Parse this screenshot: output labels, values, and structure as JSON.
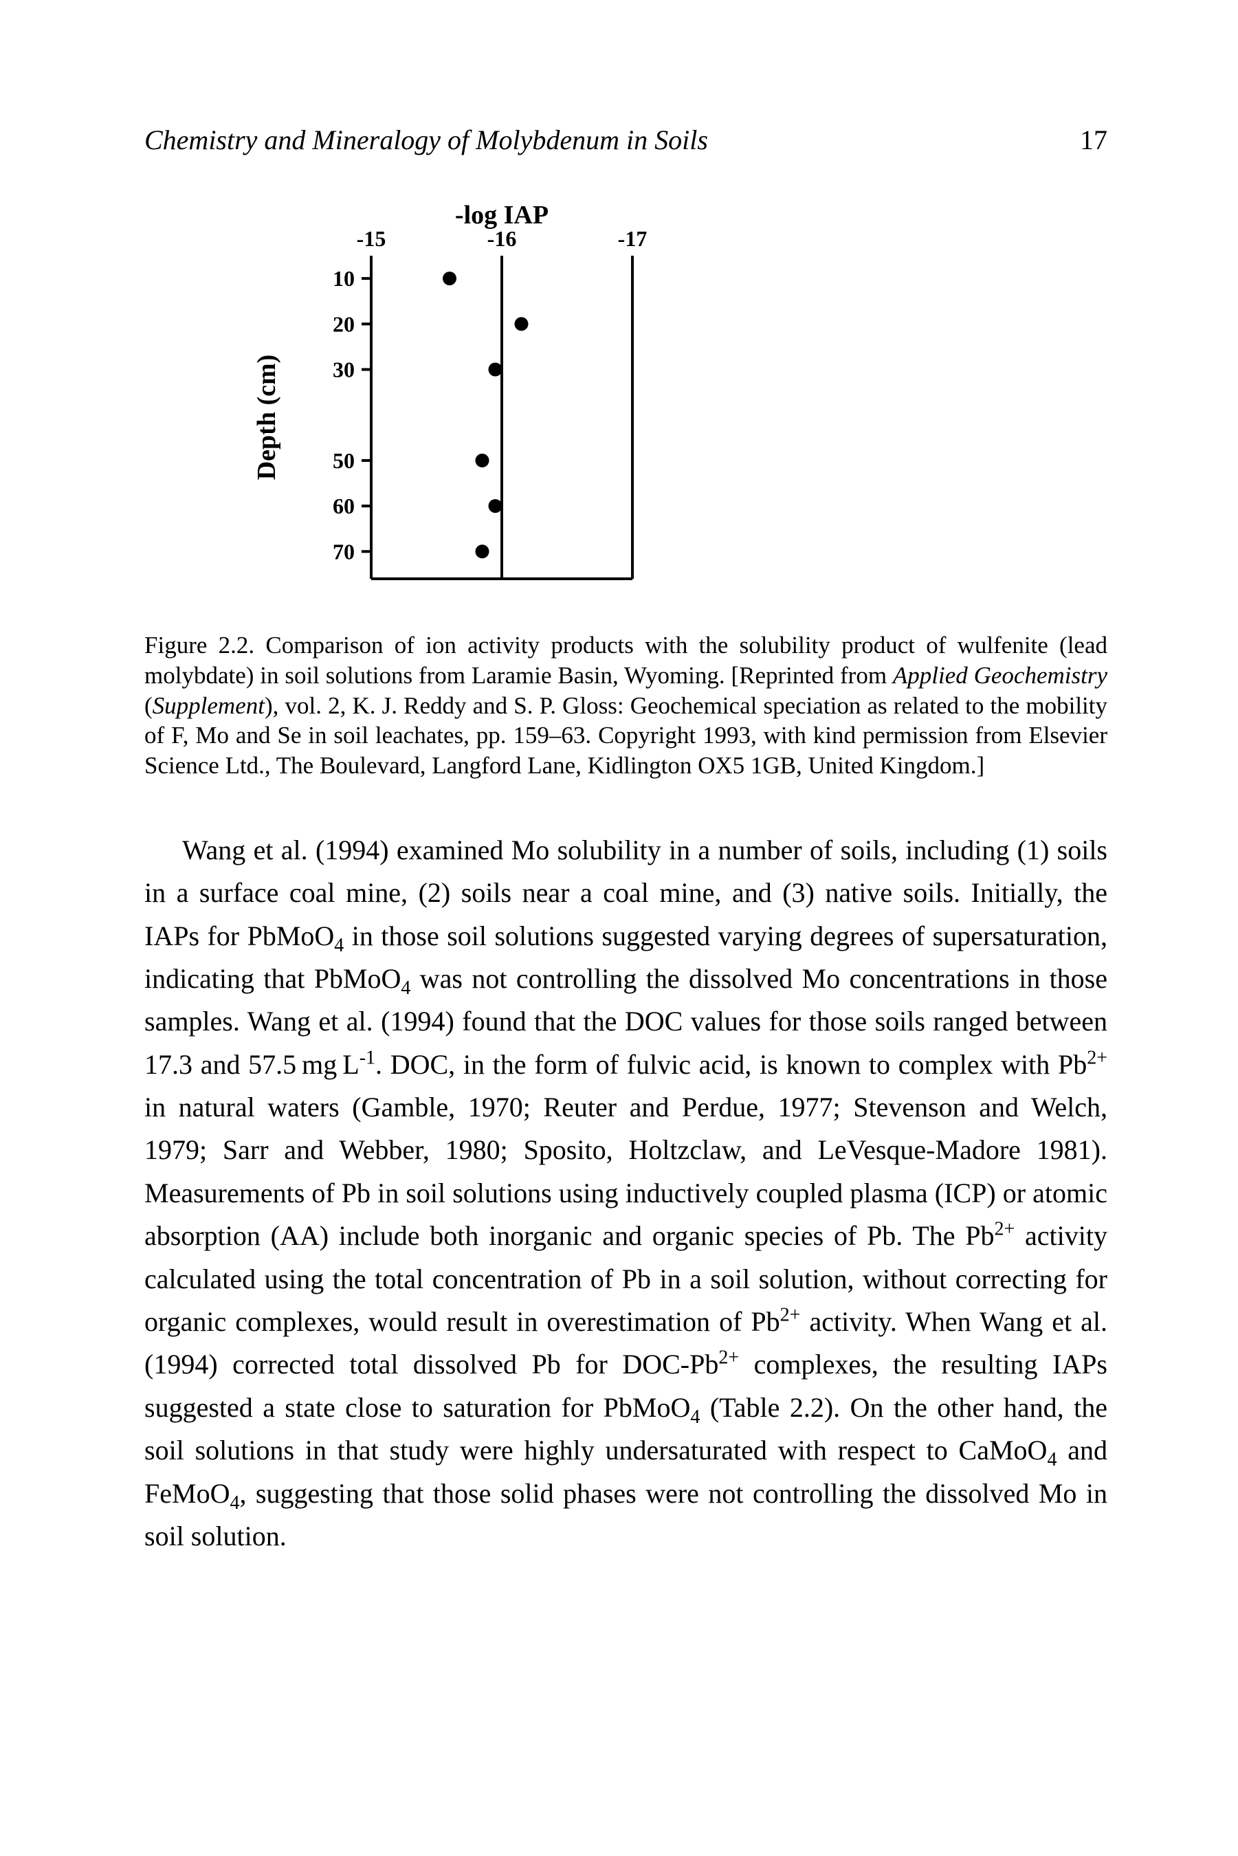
{
  "header": {
    "title": "Chemistry and Mineralogy of Molybdenum in Soils",
    "page_number": "17"
  },
  "figure": {
    "type": "scatter",
    "colors": {
      "background": "#ffffff",
      "line": "#000000",
      "point": "#000000",
      "text": "#000000"
    },
    "axis_title_x": "-log IAP",
    "axis_title_y": "Depth (cm)",
    "x_ticks": [
      "-15",
      "-16",
      "-17"
    ],
    "y_ticks": [
      "10",
      "20",
      "30",
      "50",
      "60",
      "70"
    ],
    "xlim": [
      -15,
      -17
    ],
    "ylim_top": 5,
    "ylim_bottom": 76,
    "points": [
      {
        "x": -15.6,
        "y": 10
      },
      {
        "x": -16.15,
        "y": 20
      },
      {
        "x": -15.95,
        "y": 30
      },
      {
        "x": -15.85,
        "y": 50
      },
      {
        "x": -15.95,
        "y": 60
      },
      {
        "x": -15.85,
        "y": 70
      }
    ],
    "marker_radius": 10,
    "line_width": 4,
    "font_size_ticks": 32,
    "font_size_axis_title": 38,
    "ref_line_x": -16
  },
  "caption": {
    "label": "Figure 2.2.",
    "text_before_italic": "Comparison of ion activity products with the solubility product of wulfenite (lead molybdate) in soil solutions from Laramie Basin, Wyoming. [Reprinted from ",
    "italic1": "Applied Geochemistry",
    "between": " (",
    "italic2": "Supplement",
    "text_after": "), vol. 2, K. J. Reddy and S. P. Gloss: Geochemical speciation as related to the mobility of F, Mo and Se in soil leachates, pp. 159–63. Copyright 1993, with kind permission from Elsevier Science Ltd., The Boulevard, Langford Lane, Kidlington OX5 1GB, United Kingdom.]"
  },
  "body": {
    "seg1": "Wang et al. (1994) examined Mo solubility in a number of soils, including (1) soils in a surface coal mine, (2) soils near a coal mine, and (3) native soils. Initially, the IAPs for PbMoO",
    "seg2": " in those soil solutions suggested varying degrees of supersaturation, indicating that PbMoO",
    "seg3": " was not controlling the dissolved Mo concentrations in those samples. Wang et al. (1994) found that the DOC values for those soils ranged between 17.3 and 57.5 mg L",
    "seg4": ". DOC, in the form of fulvic acid, is known to complex with Pb",
    "seg5": " in natural waters (Gamble, 1970; Reuter and Perdue, 1977; Stevenson and Welch, 1979; Sarr and Webber, 1980; Sposito, Holtzclaw, and LeVesque-Madore 1981). Measurements of Pb in soil solutions using inductively coupled plasma (ICP) or atomic absorption (AA) include both inorganic and organic species of Pb. The Pb",
    "seg6": " activity calculated using the total concentration of Pb in a soil solution, without correcting for organic complexes, would result in overestimation of Pb",
    "seg7": " activity. When Wang et al. (1994) corrected total dissolved Pb for DOC-Pb",
    "seg8": " complexes, the resulting IAPs suggested a state close to saturation for PbMoO",
    "seg9": " (Table 2.2). On the other hand, the soil solutions in that study were highly undersaturated with respect to CaMoO",
    "seg10": " and FeMoO",
    "seg11": ", suggesting that those solid phases were not controlling the dissolved Mo in soil solution.",
    "sub4": "4",
    "sup_neg1": "-1",
    "sup_2plus": "2+"
  }
}
